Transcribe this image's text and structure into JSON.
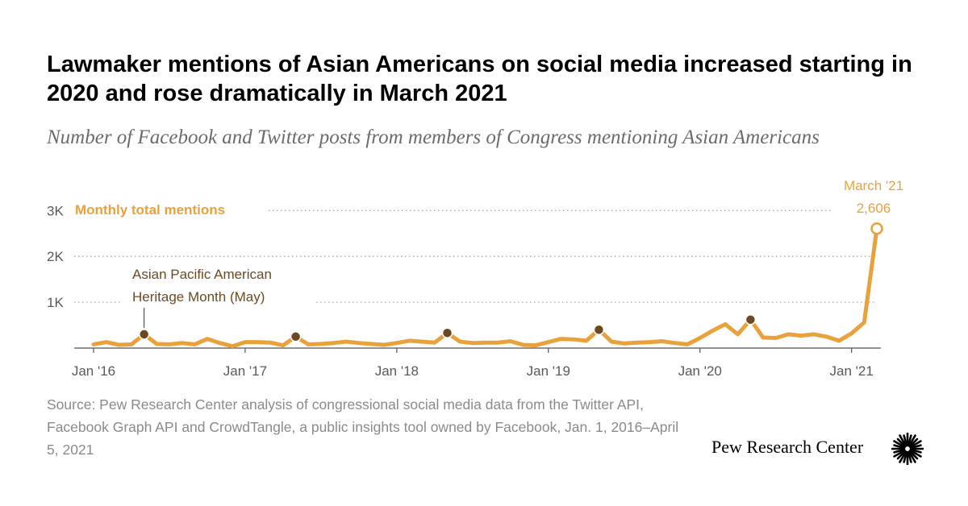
{
  "title": "Lawmaker mentions of Asian Americans on social media increased starting in 2020 and rose dramatically in March 2021",
  "subtitle": "Number of Facebook and Twitter posts from members of Congress mentioning Asian Americans",
  "source": "Source: Pew Research Center analysis of congressional social media data from the Twitter API, Facebook Graph API and CrowdTangle, a public insights tool owned by Facebook, Jan. 1, 2016–April 5, 2021",
  "brand": "Pew Research Center",
  "brand_logo_icon": "sunburst-logo-icon",
  "colors": {
    "line": "#e9a23b",
    "marker": "#6b4a22",
    "annotation": "#6b4a22",
    "axis_text": "#595959",
    "grid": "#aaaaaa"
  },
  "chart_data": {
    "type": "line",
    "ylim": [
      0,
      3000
    ],
    "y_ticks": [
      1000,
      2000,
      3000
    ],
    "y_tick_labels": [
      "1K",
      "2K",
      "3K"
    ],
    "x_tick_labels": [
      "Jan '16",
      "Jan '17",
      "Jan '18",
      "Jan '19",
      "Jan '20",
      "Jan '21"
    ],
    "x_tick_indices": [
      0,
      12,
      24,
      36,
      48,
      60
    ],
    "grid": "dotted horizontal",
    "series": [
      {
        "name": "Monthly total mentions",
        "x": [
          "2016-01",
          "2016-02",
          "2016-03",
          "2016-04",
          "2016-05",
          "2016-06",
          "2016-07",
          "2016-08",
          "2016-09",
          "2016-10",
          "2016-11",
          "2016-12",
          "2017-01",
          "2017-02",
          "2017-03",
          "2017-04",
          "2017-05",
          "2017-06",
          "2017-07",
          "2017-08",
          "2017-09",
          "2017-10",
          "2017-11",
          "2017-12",
          "2018-01",
          "2018-02",
          "2018-03",
          "2018-04",
          "2018-05",
          "2018-06",
          "2018-07",
          "2018-08",
          "2018-09",
          "2018-10",
          "2018-11",
          "2018-12",
          "2019-01",
          "2019-02",
          "2019-03",
          "2019-04",
          "2019-05",
          "2019-06",
          "2019-07",
          "2019-08",
          "2019-09",
          "2019-10",
          "2019-11",
          "2019-12",
          "2020-01",
          "2020-02",
          "2020-03",
          "2020-04",
          "2020-05",
          "2020-06",
          "2020-07",
          "2020-08",
          "2020-09",
          "2020-10",
          "2020-11",
          "2020-12",
          "2021-01",
          "2021-02",
          "2021-03"
        ],
        "values": [
          80,
          130,
          70,
          80,
          300,
          90,
          80,
          110,
          80,
          200,
          110,
          40,
          130,
          130,
          120,
          60,
          250,
          80,
          90,
          110,
          140,
          110,
          90,
          70,
          110,
          160,
          140,
          120,
          330,
          140,
          110,
          120,
          120,
          150,
          70,
          60,
          130,
          200,
          190,
          160,
          400,
          140,
          100,
          120,
          130,
          150,
          110,
          80,
          220,
          380,
          520,
          300,
          620,
          230,
          220,
          300,
          270,
          300,
          250,
          160,
          320,
          560,
          2606
        ]
      }
    ],
    "highlighted_points": [
      4,
      16,
      28,
      40,
      52
    ],
    "annotations": {
      "series_label": "Monthly total mentions",
      "heritage_month": "Asian Pacific American Heritage Month (May)",
      "peak_month": "March '21",
      "peak_value": "2,606",
      "peak_index": 62
    }
  }
}
